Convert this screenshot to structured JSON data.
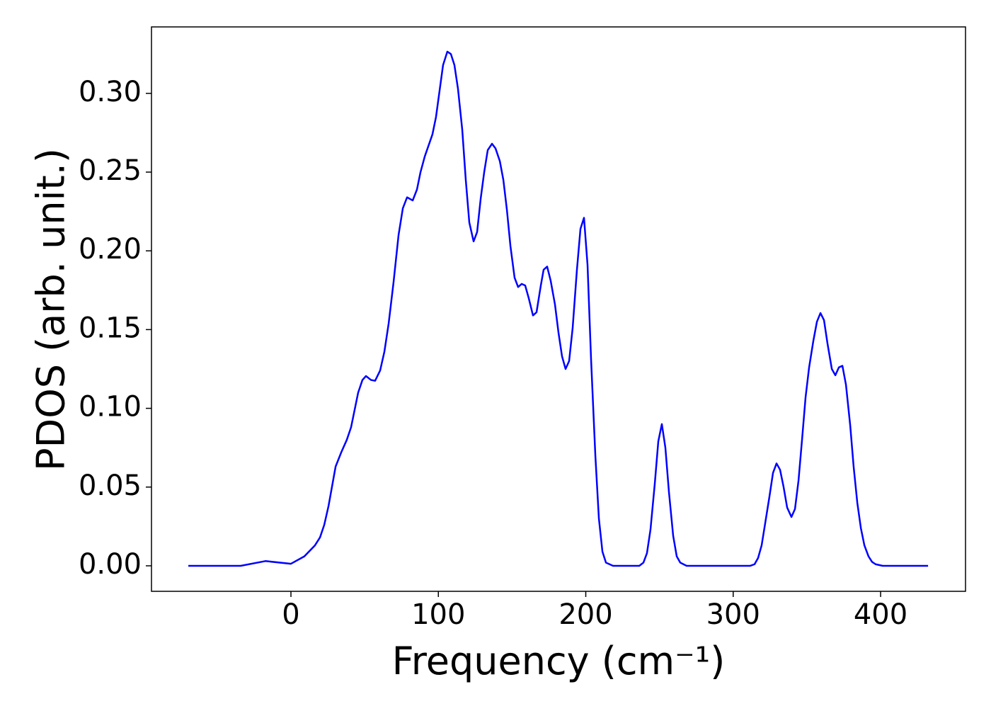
{
  "chart_data": {
    "type": "line",
    "xlabel": "Frequency (cm⁻¹)",
    "ylabel": "PDOS (arb. unit.)",
    "xlim": [
      -94.6,
      457.6
    ],
    "ylim": [
      -0.0162,
      0.3422
    ],
    "xticks": [
      0,
      100,
      200,
      300,
      400
    ],
    "yticks": [
      {
        "value": 0,
        "label": "0.00"
      },
      {
        "value": 0.05,
        "label": "0.05"
      },
      {
        "value": 0.1,
        "label": "0.10"
      },
      {
        "value": 0.15,
        "label": "0.15"
      },
      {
        "value": 0.2,
        "label": "0.20"
      },
      {
        "value": 0.25,
        "label": "0.25"
      },
      {
        "value": 0.3,
        "label": "0.30"
      }
    ],
    "grid": false,
    "series": [
      {
        "color": "#0000ff",
        "x": [
          -69.6,
          -34.1,
          -17.3,
          0,
          9.1,
          16.3,
          19.7,
          22.6,
          25.5,
          30.3,
          34.1,
          37.9,
          40.8,
          45.6,
          48.5,
          50.9,
          54.3,
          57.1,
          60.5,
          63.4,
          66.3,
          69.6,
          73.0,
          75.9,
          78.8,
          82.6,
          85.5,
          87.9,
          90.8,
          96.0,
          98.4,
          103.2,
          106.1,
          108.5,
          110.9,
          113.3,
          116.2,
          118.6,
          121.0,
          123.9,
          126.3,
          128.7,
          131.1,
          133.5,
          136.4,
          138.8,
          141.7,
          144.1,
          146.5,
          148.9,
          151.7,
          154.1,
          156.5,
          158.9,
          161.3,
          164.2,
          166.6,
          169.5,
          171.4,
          173.8,
          176.2,
          179.1,
          181.5,
          183.9,
          186.3,
          188.7,
          191.1,
          194.0,
          196.4,
          198.8,
          201.2,
          203.6,
          206.5,
          208.9,
          211.3,
          213.7,
          218.5,
          236.3,
          239.1,
          241.5,
          243.9,
          246.8,
          249.2,
          251.6,
          254.0,
          256.4,
          259.3,
          261.7,
          264.1,
          268.4,
          311.6,
          314.5,
          316.9,
          319.3,
          321.7,
          324.6,
          327.0,
          329.4,
          331.8,
          334.2,
          336.6,
          339.5,
          341.9,
          344.3,
          346.7,
          349.1,
          351.5,
          354.4,
          356.8,
          359.2,
          361.6,
          364.0,
          366.9,
          369.3,
          371.7,
          374.1,
          376.5,
          379.4,
          381.7,
          384.2,
          386.6,
          389.0,
          391.8,
          394.2,
          396.6,
          401.4,
          432.2
        ],
        "values": [
          0,
          0,
          0.003,
          0.0013,
          0.006,
          0.013,
          0.018,
          0.026,
          0.038,
          0.063,
          0.072,
          0.08,
          0.088,
          0.11,
          0.118,
          0.1205,
          0.118,
          0.1175,
          0.124,
          0.136,
          0.154,
          0.18,
          0.21,
          0.227,
          0.234,
          0.232,
          0.239,
          0.25,
          0.26,
          0.274,
          0.285,
          0.318,
          0.3265,
          0.325,
          0.318,
          0.303,
          0.277,
          0.245,
          0.218,
          0.206,
          0.212,
          0.233,
          0.25,
          0.264,
          0.268,
          0.265,
          0.257,
          0.245,
          0.226,
          0.203,
          0.183,
          0.177,
          0.179,
          0.178,
          0.17,
          0.159,
          0.161,
          0.178,
          0.188,
          0.19,
          0.181,
          0.166,
          0.148,
          0.133,
          0.125,
          0.13,
          0.151,
          0.188,
          0.214,
          0.221,
          0.191,
          0.131,
          0.07,
          0.03,
          0.009,
          0.002,
          0,
          0,
          0.002,
          0.008,
          0.023,
          0.052,
          0.079,
          0.09,
          0.075,
          0.047,
          0.019,
          0.006,
          0.002,
          0,
          0,
          0.001,
          0.005,
          0.013,
          0.027,
          0.044,
          0.059,
          0.065,
          0.061,
          0.05,
          0.037,
          0.031,
          0.036,
          0.054,
          0.08,
          0.107,
          0.126,
          0.143,
          0.155,
          0.1605,
          0.156,
          0.141,
          0.125,
          0.121,
          0.126,
          0.127,
          0.115,
          0.089,
          0.063,
          0.04,
          0.024,
          0.013,
          0.006,
          0.0025,
          0.001,
          0,
          0
        ]
      }
    ]
  }
}
